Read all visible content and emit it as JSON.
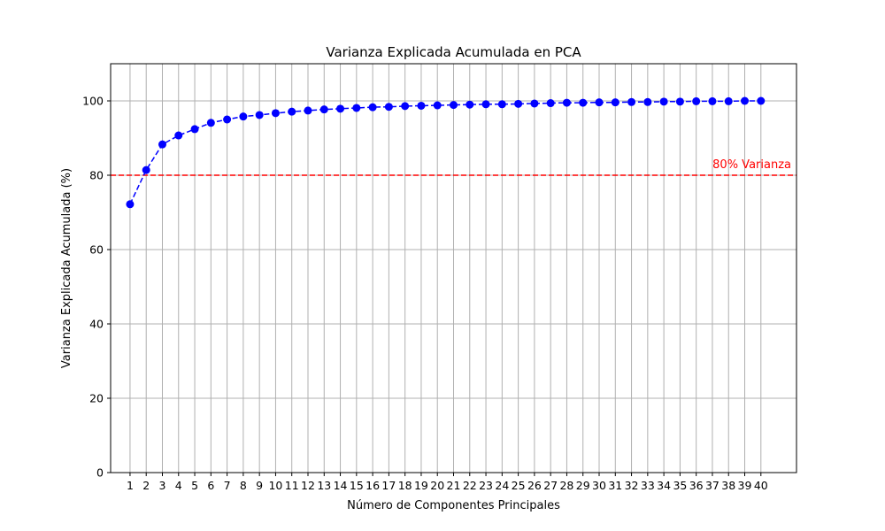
{
  "chart_data": {
    "type": "line",
    "title": "Varianza Explicada Acumulada en PCA",
    "xlabel": "Número de Componentes Principales",
    "ylabel": "Varianza Explicada Acumulada (%)",
    "x": [
      1,
      2,
      3,
      4,
      5,
      6,
      7,
      8,
      9,
      10,
      11,
      12,
      13,
      14,
      15,
      16,
      17,
      18,
      19,
      20,
      21,
      22,
      23,
      24,
      25,
      26,
      27,
      28,
      29,
      30,
      31,
      32,
      33,
      34,
      35,
      36,
      37,
      38,
      39,
      40
    ],
    "x_ticks": [
      "1",
      "2",
      "3",
      "4",
      "5",
      "6",
      "7",
      "8",
      "9",
      "10",
      "11",
      "12",
      "13",
      "14",
      "15",
      "16",
      "17",
      "18",
      "19",
      "20",
      "21",
      "22",
      "23",
      "24",
      "25",
      "26",
      "27",
      "28",
      "29",
      "30",
      "31",
      "32",
      "33",
      "34",
      "35",
      "36",
      "37",
      "38",
      "39",
      "40"
    ],
    "series": [
      {
        "values": [
          72.2,
          81.4,
          88.3,
          90.7,
          92.4,
          94.1,
          95.0,
          95.8,
          96.2,
          96.7,
          97.1,
          97.4,
          97.7,
          97.9,
          98.1,
          98.3,
          98.4,
          98.6,
          98.7,
          98.8,
          98.9,
          99.0,
          99.1,
          99.1,
          99.2,
          99.3,
          99.4,
          99.5,
          99.5,
          99.6,
          99.6,
          99.7,
          99.7,
          99.8,
          99.8,
          99.9,
          99.9,
          99.9,
          100.0,
          100.0
        ],
        "color": "#0000ff",
        "line_style": "dashed",
        "marker": "circle"
      }
    ],
    "reference_line": {
      "y": 80,
      "label": "80% Varianza",
      "color": "#ff0000",
      "line_style": "dashed"
    },
    "xlim": [
      -0.2,
      42.2
    ],
    "ylim": [
      0,
      110
    ],
    "y_ticks": [
      0,
      20,
      40,
      60,
      80,
      100
    ],
    "grid": true,
    "grid_color": "#b0b0b0"
  }
}
